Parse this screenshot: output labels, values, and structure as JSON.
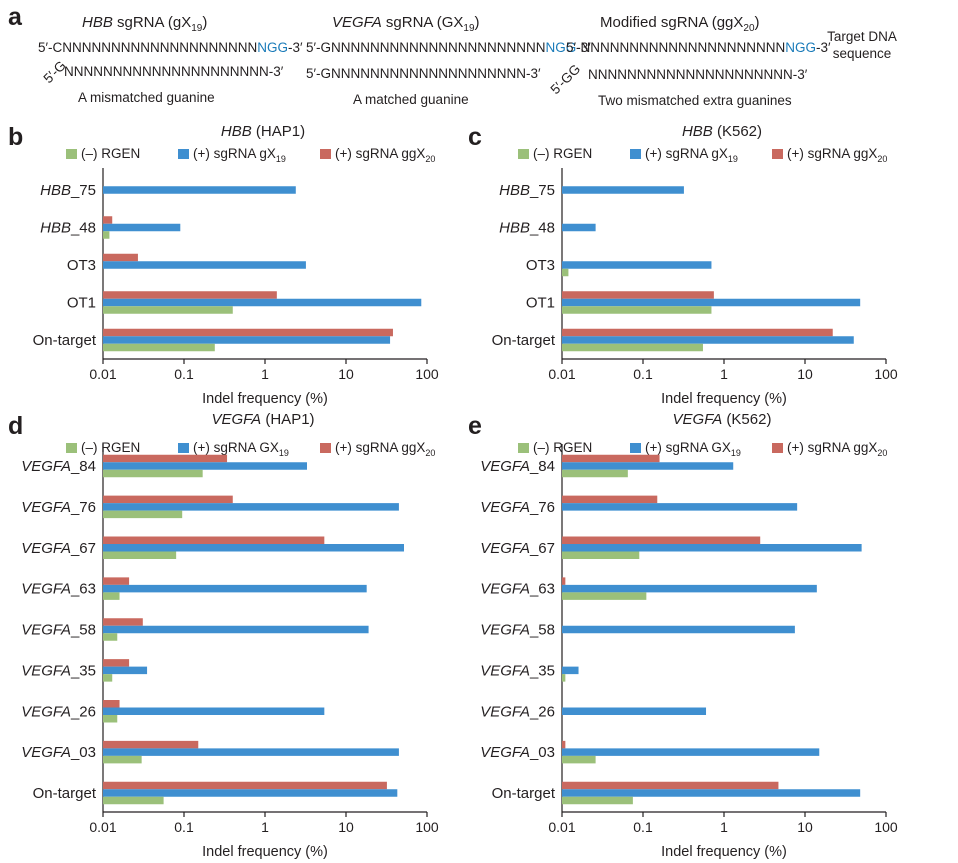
{
  "colors": {
    "rgen": "#9bc07a",
    "gx": "#3f8fd0",
    "ggx": "#c9695f",
    "ngg": "#1a7bb9",
    "axis": "#231f20"
  },
  "panel_a": {
    "letter": "a",
    "right_label_1": "Target DNA",
    "right_label_2": "sequence",
    "designs": [
      {
        "gene": "HBB",
        "title_rest": " sgRNA (gX",
        "title_sub": "19",
        "title_end": ")",
        "top_seq": "5′-CNNNNNNNNNNNNNNNNNNNN",
        "top_pam": "NGG",
        "top_end": "-3′",
        "guide_5p": "5′-G",
        "guide_seq": "NNNNNNNNNNNNNNNNNNNNN-3′",
        "caption": "A mismatched guanine"
      },
      {
        "gene": "VEGFA",
        "title_rest": " sgRNA (GX",
        "title_sub": "19",
        "title_end": ")",
        "top_seq": "5′-GNNNNNNNNNNNNNNNNNNNNNN",
        "top_pam": "NGG",
        "top_end": "-3′",
        "guide_5p": "",
        "guide_seq": "5′-GNNNNNNNNNNNNNNNNNNNN-3′",
        "caption": "A matched guanine"
      },
      {
        "gene": "",
        "title_rest": "Modified sgRNA (ggX",
        "title_sub": "20",
        "title_end": ")",
        "top_seq": "5′-NNNNNNNNNNNNNNNNNNNNN",
        "top_pam": "NGG",
        "top_end": "-3′",
        "guide_5p": "5′-GG",
        "guide_seq": "NNNNNNNNNNNNNNNNNNNNN-3′",
        "caption": "Two mismatched extra guanines"
      }
    ]
  },
  "chart_data": [
    {
      "type": "bar",
      "orientation": "horizontal",
      "panel": "b",
      "title_gene": "HBB",
      "title_cell": " (HAP1)",
      "xlabel": "Indel frequency (%)",
      "xscale": "log",
      "xlim": [
        0.01,
        100
      ],
      "ticks": [
        "0.01",
        "0.1",
        "1",
        "10",
        "100"
      ],
      "legend": [
        {
          "name": "(–) RGEN",
          "sub": ""
        },
        {
          "name": "(+) sgRNA gX",
          "sub": "19"
        },
        {
          "name": "(+) sgRNA ggX",
          "sub": "20"
        }
      ],
      "categories": [
        {
          "name": "HBB",
          "suffix": "_75",
          "italic": true
        },
        {
          "name": "HBB",
          "suffix": "_48",
          "italic": true
        },
        {
          "name": "OT3",
          "suffix": "",
          "italic": false
        },
        {
          "name": "OT1",
          "suffix": "",
          "italic": false
        },
        {
          "name": "On-target",
          "suffix": "",
          "italic": false
        }
      ],
      "series": [
        {
          "name": "(–) RGEN",
          "values": [
            null,
            0.012,
            null,
            0.4,
            0.24
          ]
        },
        {
          "name": "(+) sgRNA gX19",
          "values": [
            2.4,
            0.09,
            3.2,
            85,
            35
          ]
        },
        {
          "name": "(+) sgRNA ggX20",
          "values": [
            null,
            0.013,
            0.027,
            1.4,
            38
          ]
        }
      ]
    },
    {
      "type": "bar",
      "orientation": "horizontal",
      "panel": "c",
      "title_gene": "HBB",
      "title_cell": " (K562)",
      "xlabel": "Indel frequency (%)",
      "xscale": "log",
      "xlim": [
        0.01,
        100
      ],
      "ticks": [
        "0.01",
        "0.1",
        "1",
        "10",
        "100"
      ],
      "legend": [
        {
          "name": "(–) RGEN",
          "sub": ""
        },
        {
          "name": "(+) sgRNA gX",
          "sub": "19"
        },
        {
          "name": "(+) sgRNA ggX",
          "sub": "20"
        }
      ],
      "categories": [
        {
          "name": "HBB",
          "suffix": "_75",
          "italic": true
        },
        {
          "name": "HBB",
          "suffix": "_48",
          "italic": true
        },
        {
          "name": "OT3",
          "suffix": "",
          "italic": false
        },
        {
          "name": "OT1",
          "suffix": "",
          "italic": false
        },
        {
          "name": "On-target",
          "suffix": "",
          "italic": false
        }
      ],
      "series": [
        {
          "name": "(–) RGEN",
          "values": [
            null,
            null,
            0.012,
            0.7,
            0.55
          ]
        },
        {
          "name": "(+) sgRNA gX19",
          "values": [
            0.32,
            0.026,
            0.7,
            48,
            40
          ]
        },
        {
          "name": "(+) sgRNA ggX20",
          "values": [
            null,
            null,
            null,
            0.75,
            22
          ]
        }
      ]
    },
    {
      "type": "bar",
      "orientation": "horizontal",
      "panel": "d",
      "title_gene": "VEGFA",
      "title_cell": " (HAP1)",
      "xlabel": "Indel frequency (%)",
      "xscale": "log",
      "xlim": [
        0.01,
        100
      ],
      "ticks": [
        "0.01",
        "0.1",
        "1",
        "10",
        "100"
      ],
      "legend": [
        {
          "name": "(–) RGEN",
          "sub": ""
        },
        {
          "name": "(+) sgRNA GX",
          "sub": "19"
        },
        {
          "name": "(+) sgRNA ggX",
          "sub": "20"
        }
      ],
      "categories": [
        {
          "name": "VEGFA",
          "suffix": "_84",
          "italic": true
        },
        {
          "name": "VEGFA",
          "suffix": "_76",
          "italic": true
        },
        {
          "name": "VEGFA",
          "suffix": "_67",
          "italic": true
        },
        {
          "name": "VEGFA",
          "suffix": "_63",
          "italic": true
        },
        {
          "name": "VEGFA",
          "suffix": "_58",
          "italic": true
        },
        {
          "name": "VEGFA",
          "suffix": "_35",
          "italic": true
        },
        {
          "name": "VEGFA",
          "suffix": "_26",
          "italic": true
        },
        {
          "name": "VEGFA",
          "suffix": "_03",
          "italic": true
        },
        {
          "name": "On-target",
          "suffix": "",
          "italic": false
        }
      ],
      "series": [
        {
          "name": "(–) RGEN",
          "values": [
            0.17,
            0.095,
            0.08,
            0.016,
            0.015,
            0.013,
            0.015,
            0.03,
            0.056
          ]
        },
        {
          "name": "(+) sgRNA GX19",
          "values": [
            3.3,
            45,
            52,
            18,
            19,
            0.035,
            5.4,
            45,
            43
          ]
        },
        {
          "name": "(+) sgRNA ggX20",
          "values": [
            0.34,
            0.4,
            5.4,
            0.021,
            0.031,
            0.021,
            0.016,
            0.15,
            32
          ]
        }
      ]
    },
    {
      "type": "bar",
      "orientation": "horizontal",
      "panel": "e",
      "title_gene": "VEGFA",
      "title_cell": " (K562)",
      "xlabel": "Indel frequency (%)",
      "xscale": "log",
      "xlim": [
        0.01,
        100
      ],
      "ticks": [
        "0.01",
        "0.1",
        "1",
        "10",
        "100"
      ],
      "legend": [
        {
          "name": "(–) RGEN",
          "sub": ""
        },
        {
          "name": "(+) sgRNA GX",
          "sub": "19"
        },
        {
          "name": "(+) sgRNA ggX",
          "sub": "20"
        }
      ],
      "categories": [
        {
          "name": "VEGFA",
          "suffix": "_84",
          "italic": true
        },
        {
          "name": "VEGFA",
          "suffix": "_76",
          "italic": true
        },
        {
          "name": "VEGFA",
          "suffix": "_67",
          "italic": true
        },
        {
          "name": "VEGFA",
          "suffix": "_63",
          "italic": true
        },
        {
          "name": "VEGFA",
          "suffix": "_58",
          "italic": true
        },
        {
          "name": "VEGFA",
          "suffix": "_35",
          "italic": true
        },
        {
          "name": "VEGFA",
          "suffix": "_26",
          "italic": true
        },
        {
          "name": "VEGFA",
          "suffix": "_03",
          "italic": true
        },
        {
          "name": "On-target",
          "suffix": "",
          "italic": false
        }
      ],
      "series": [
        {
          "name": "(–) RGEN",
          "values": [
            0.065,
            null,
            0.09,
            0.11,
            null,
            0.011,
            null,
            0.026,
            0.075
          ]
        },
        {
          "name": "(+) sgRNA GX19",
          "values": [
            1.3,
            8,
            50,
            14,
            7.5,
            0.016,
            0.6,
            15,
            48
          ]
        },
        {
          "name": "(+) sgRNA ggX20",
          "values": [
            0.16,
            0.15,
            2.8,
            0.011,
            null,
            null,
            null,
            0.011,
            4.7
          ]
        }
      ]
    }
  ]
}
